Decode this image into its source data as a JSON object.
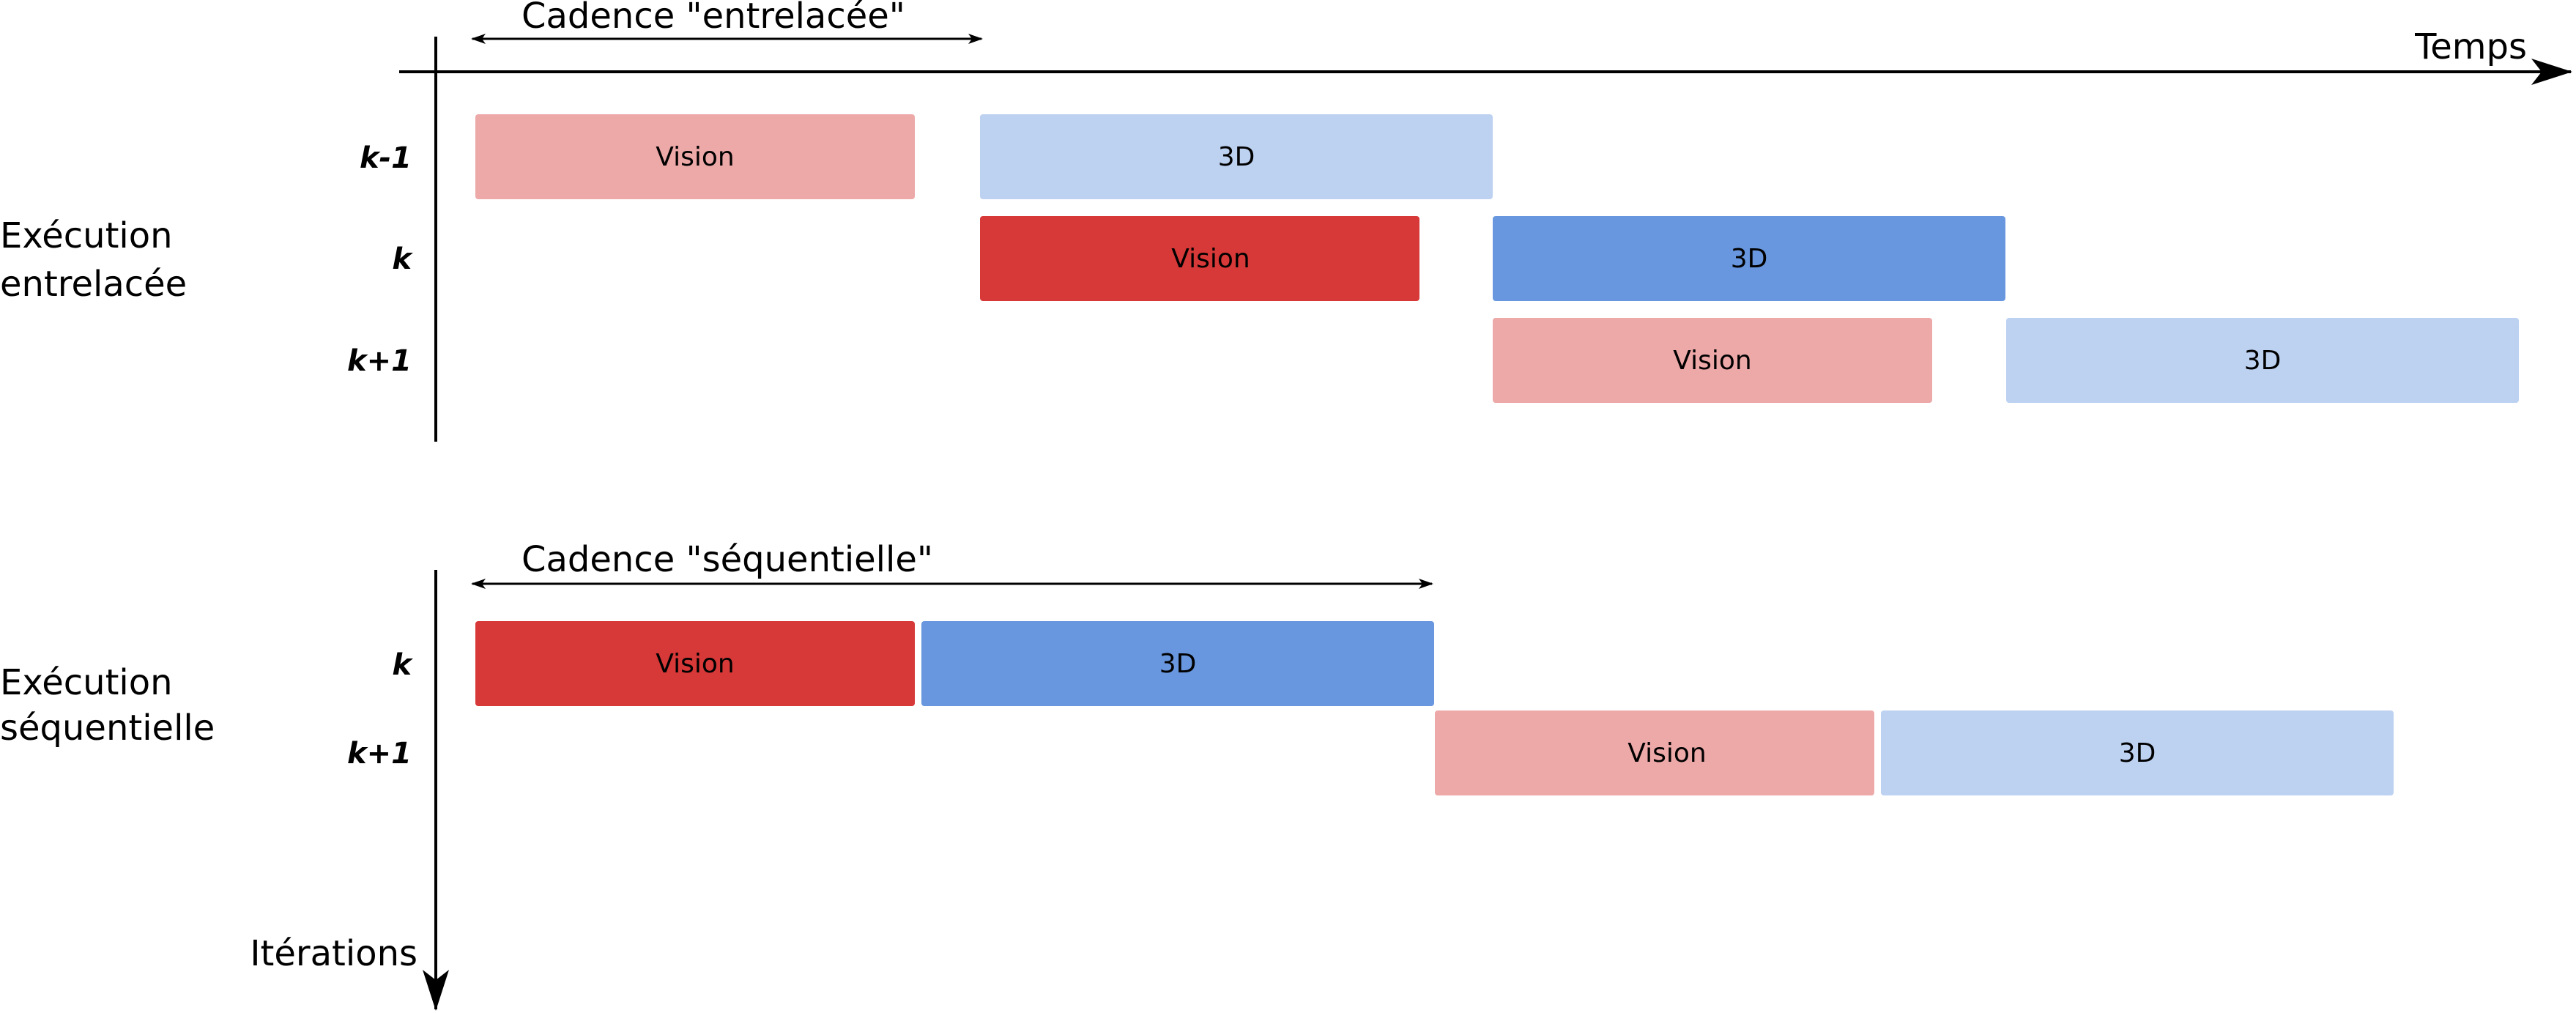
{
  "time_axis": {
    "label": "Temps"
  },
  "iteration_axis": {
    "label": "Itérations"
  },
  "interleaved": {
    "title_line1": "Exécution",
    "title_line2": "entrelacée",
    "cadence": "Cadence \"entrelacée\"",
    "rows": [
      {
        "label": "k-1",
        "blocks": [
          {
            "label": "Vision",
            "type": "vision",
            "emphasis": "faded"
          },
          {
            "label": "3D",
            "type": "3d",
            "emphasis": "faded"
          }
        ]
      },
      {
        "label": "k",
        "blocks": [
          {
            "label": "Vision",
            "type": "vision",
            "emphasis": "strong"
          },
          {
            "label": "3D",
            "type": "3d",
            "emphasis": "strong"
          }
        ]
      },
      {
        "label": "k+1",
        "blocks": [
          {
            "label": "Vision",
            "type": "vision",
            "emphasis": "faded"
          },
          {
            "label": "3D",
            "type": "3d",
            "emphasis": "faded"
          }
        ]
      }
    ]
  },
  "sequential": {
    "title_line1": "Exécution",
    "title_line2": "séquentielle",
    "cadence": "Cadence \"séquentielle\"",
    "rows": [
      {
        "label": "k",
        "blocks": [
          {
            "label": "Vision",
            "type": "vision",
            "emphasis": "strong"
          },
          {
            "label": "3D",
            "type": "3d",
            "emphasis": "strong"
          }
        ]
      },
      {
        "label": "k+1",
        "blocks": [
          {
            "label": "Vision",
            "type": "vision",
            "emphasis": "faded"
          },
          {
            "label": "3D",
            "type": "3d",
            "emphasis": "faded"
          }
        ]
      }
    ]
  },
  "colors": {
    "vision_strong": "#D73838",
    "vision_faded": "#EDA8A8",
    "3d_strong": "#6897DF",
    "3d_faded": "#BDD1F1",
    "axis": "#000000"
  }
}
